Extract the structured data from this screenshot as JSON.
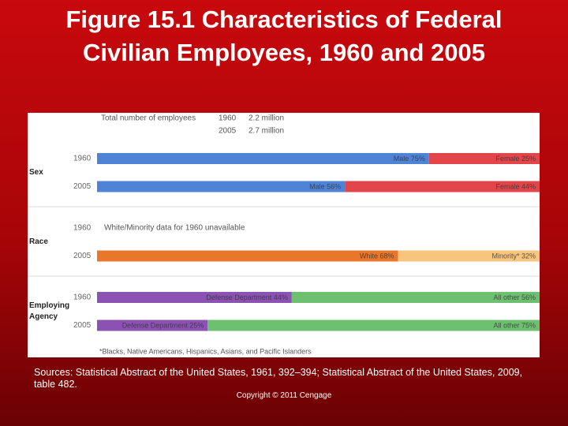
{
  "chart_data": {
    "type": "bar",
    "orientation": "horizontal",
    "stacked": true,
    "title": "Figure 15.1 Characteristics of Federal Civilian Employees, 1960 and 2005",
    "xlim": [
      0,
      100
    ],
    "total": {
      "label": "Total number of employees",
      "years": [
        "1960",
        "2005"
      ],
      "values": [
        2.2,
        2.7
      ],
      "value_labels": [
        "2.2 million",
        "2.7 million"
      ]
    },
    "groups": [
      {
        "name": "Sex",
        "rows": [
          {
            "year": "1960",
            "segments": [
              {
                "label": "Male 75%",
                "value": 75,
                "color": "#4f83d6"
              },
              {
                "label": "Female 25%",
                "value": 25,
                "color": "#e2464b"
              }
            ]
          },
          {
            "year": "2005",
            "segments": [
              {
                "label": "Male 56%",
                "value": 56,
                "color": "#4f83d6"
              },
              {
                "label": "Female 44%",
                "value": 44,
                "color": "#e2464b"
              }
            ]
          }
        ]
      },
      {
        "name": "Race",
        "rows": [
          {
            "year": "1960",
            "note": "White/Minority data for 1960 unavailable"
          },
          {
            "year": "2005",
            "segments": [
              {
                "label": "White 68%",
                "value": 68,
                "color": "#e8772c"
              },
              {
                "label": "Minority* 32%",
                "value": 32,
                "color": "#f8c57f"
              }
            ]
          }
        ]
      },
      {
        "name": "Employing Agency",
        "rows": [
          {
            "year": "1960",
            "segments": [
              {
                "label": "Defense Department 44%",
                "value": 44,
                "color": "#8b52b3"
              },
              {
                "label": "All other 56%",
                "value": 56,
                "color": "#6dc06f"
              }
            ]
          },
          {
            "year": "2005",
            "segments": [
              {
                "label": "Defense Department 25%",
                "value": 25,
                "color": "#8b52b3"
              },
              {
                "label": "All other 75%",
                "value": 75,
                "color": "#6dc06f"
              }
            ]
          }
        ]
      }
    ],
    "footnote": "*Blacks, Native Americans, Hispanics, Asians, and Pacific Islanders"
  },
  "sources": "Sources: Statistical Abstract of the United States, 1961, 392–394; Statistical Abstract of the United States, 2009, table 482.",
  "copyright": "Copyright © 2011 Cengage"
}
